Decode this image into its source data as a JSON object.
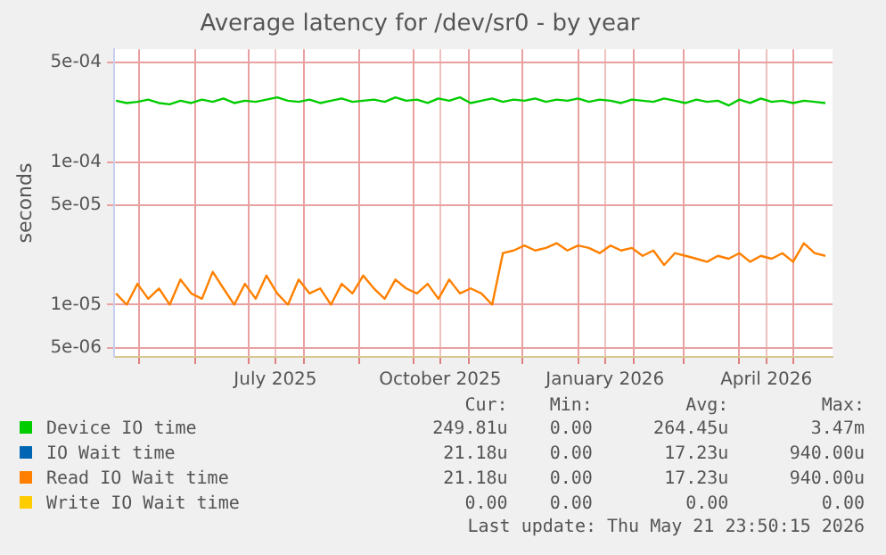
{
  "chart_data": {
    "type": "line",
    "title": "Average latency for /dev/sr0 - by year",
    "ylabel": "seconds",
    "x": [
      "2025-04-18",
      "2025-04-24",
      "2025-04-30",
      "2025-05-06",
      "2025-05-12",
      "2025-05-18",
      "2025-05-24",
      "2025-05-30",
      "2025-06-05",
      "2025-06-11",
      "2025-06-17",
      "2025-06-23",
      "2025-06-29",
      "2025-07-05",
      "2025-07-11",
      "2025-07-17",
      "2025-07-23",
      "2025-07-29",
      "2025-08-04",
      "2025-08-10",
      "2025-08-16",
      "2025-08-22",
      "2025-08-28",
      "2025-09-03",
      "2025-09-09",
      "2025-09-15",
      "2025-09-21",
      "2025-09-27",
      "2025-10-03",
      "2025-10-09",
      "2025-10-15",
      "2025-10-21",
      "2025-10-27",
      "2025-11-02",
      "2025-11-08",
      "2025-11-14",
      "2025-11-20",
      "2025-11-26",
      "2025-12-02",
      "2025-12-08",
      "2025-12-14",
      "2025-12-20",
      "2025-12-26",
      "2026-01-01",
      "2026-01-07",
      "2026-01-13",
      "2026-01-19",
      "2026-01-25",
      "2026-01-31",
      "2026-02-06",
      "2026-02-12",
      "2026-02-18",
      "2026-02-24",
      "2026-03-02",
      "2026-03-08",
      "2026-03-14",
      "2026-03-20",
      "2026-03-26",
      "2026-04-01",
      "2026-04-07",
      "2026-04-13",
      "2026-04-19",
      "2026-04-25",
      "2026-05-01",
      "2026-05-07",
      "2026-05-13",
      "2026-05-19"
    ],
    "series": [
      {
        "name": "Device IO time",
        "color": "#00cc00",
        "values": [
          0.00027,
          0.00026,
          0.000265,
          0.000275,
          0.00026,
          0.000255,
          0.00027,
          0.00026,
          0.000275,
          0.000265,
          0.00028,
          0.00026,
          0.00027,
          0.000265,
          0.000275,
          0.000285,
          0.00027,
          0.000265,
          0.000275,
          0.00026,
          0.00027,
          0.00028,
          0.000265,
          0.00027,
          0.000275,
          0.000265,
          0.000285,
          0.00027,
          0.000275,
          0.00026,
          0.00028,
          0.00027,
          0.000285,
          0.00026,
          0.00027,
          0.00028,
          0.000265,
          0.000275,
          0.00027,
          0.00028,
          0.000265,
          0.000275,
          0.00027,
          0.00028,
          0.000265,
          0.000275,
          0.00027,
          0.00026,
          0.000275,
          0.00027,
          0.000265,
          0.00028,
          0.00027,
          0.00026,
          0.000275,
          0.000265,
          0.00027,
          0.00025,
          0.000275,
          0.00026,
          0.00028,
          0.000265,
          0.00027,
          0.00026,
          0.00027,
          0.000265,
          0.00026
        ]
      },
      {
        "name": "IO Wait time",
        "color": "#0066b3",
        "values": [
          null,
          null,
          null,
          null,
          null,
          null,
          null,
          null,
          null,
          null,
          null,
          null,
          null,
          null,
          null,
          null,
          null,
          null,
          null,
          null,
          null,
          null,
          null,
          null,
          null,
          null,
          null,
          null,
          null,
          null,
          null,
          null,
          null,
          null,
          null,
          null,
          null,
          null,
          null,
          null,
          null,
          null,
          null,
          null,
          null,
          null,
          null,
          null,
          null,
          null,
          null,
          null,
          null,
          null,
          null,
          null,
          null,
          null,
          null,
          null,
          null,
          null,
          null,
          null,
          null,
          null,
          null
        ]
      },
      {
        "name": "Read IO Wait time",
        "color": "#ff8000",
        "values": [
          1.2e-05,
          1e-05,
          1.4e-05,
          1.1e-05,
          1.3e-05,
          1e-05,
          1.5e-05,
          1.2e-05,
          1.1e-05,
          1.7e-05,
          1.3e-05,
          1e-05,
          1.4e-05,
          1.1e-05,
          1.6e-05,
          1.2e-05,
          1e-05,
          1.5e-05,
          1.2e-05,
          1.3e-05,
          1e-05,
          1.4e-05,
          1.2e-05,
          1.6e-05,
          1.3e-05,
          1.1e-05,
          1.5e-05,
          1.3e-05,
          1.2e-05,
          1.4e-05,
          1.1e-05,
          1.5e-05,
          1.2e-05,
          1.3e-05,
          1.2e-05,
          1e-05,
          2.3e-05,
          2.4e-05,
          2.6e-05,
          2.4e-05,
          2.5e-05,
          2.7e-05,
          2.4e-05,
          2.6e-05,
          2.5e-05,
          2.3e-05,
          2.6e-05,
          2.4e-05,
          2.5e-05,
          2.2e-05,
          2.4e-05,
          1.9e-05,
          2.3e-05,
          2.2e-05,
          2.1e-05,
          2e-05,
          2.2e-05,
          2.1e-05,
          2.3e-05,
          2e-05,
          2.2e-05,
          2.1e-05,
          2.3e-05,
          2e-05,
          2.7e-05,
          2.3e-05,
          2.2e-05
        ]
      },
      {
        "name": "Write IO Wait time",
        "color": "#ffcc00",
        "values": [
          null,
          null,
          null,
          null,
          null,
          null,
          null,
          null,
          null,
          null,
          null,
          null,
          null,
          null,
          null,
          null,
          null,
          null,
          null,
          null,
          null,
          null,
          null,
          null,
          null,
          null,
          null,
          null,
          null,
          null,
          null,
          null,
          null,
          null,
          null,
          null,
          null,
          null,
          null,
          null,
          null,
          null,
          null,
          null,
          null,
          null,
          null,
          null,
          null,
          null,
          null,
          null,
          null,
          null,
          null,
          null,
          null,
          null,
          null,
          null,
          null,
          null,
          null,
          null,
          null,
          null,
          null
        ]
      }
    ],
    "log": "y",
    "xlim": [
      "2025-04-17",
      "2026-05-23"
    ],
    "ylim": [
      4.3e-06,
      0.00062
    ],
    "xticks": [
      {
        "value": "2025-05-01",
        "label": null
      },
      {
        "value": "2025-06-01",
        "label": null
      },
      {
        "value": "2025-07-01",
        "label": null
      },
      {
        "value": "2025-07-16",
        "label": "July 2025"
      },
      {
        "value": "2025-08-01",
        "label": null
      },
      {
        "value": "2025-09-01",
        "label": null
      },
      {
        "value": "2025-10-01",
        "label": null
      },
      {
        "value": "2025-10-16",
        "label": "October 2025"
      },
      {
        "value": "2025-11-01",
        "label": null
      },
      {
        "value": "2025-12-01",
        "label": null
      },
      {
        "value": "2026-01-01",
        "label": null
      },
      {
        "value": "2026-01-16",
        "label": "January 2026"
      },
      {
        "value": "2026-02-01",
        "label": null
      },
      {
        "value": "2026-03-01",
        "label": null
      },
      {
        "value": "2026-04-01",
        "label": null
      },
      {
        "value": "2026-04-16",
        "label": "April 2026"
      },
      {
        "value": "2026-05-01",
        "label": null
      }
    ],
    "yticks": [
      {
        "value": 5e-06,
        "label": "5e-06"
      },
      {
        "value": 1e-05,
        "label": "1e-05"
      },
      {
        "value": 5e-05,
        "label": "5e-05"
      },
      {
        "value": 0.0001,
        "label": "1e-04"
      },
      {
        "value": 0.0005,
        "label": "5e-04"
      }
    ],
    "grid": true,
    "legend": "bottom",
    "marker": "none",
    "line_style": "solid",
    "annotations": [
      "Cur:",
      "Min:",
      "Avg:",
      "Max:",
      "249.81u",
      "0.00",
      "264.45u",
      "3.47m",
      "21.18u",
      "0.00",
      "17.23u",
      "940.00u",
      "21.18u",
      "0.00",
      "17.23u",
      "940.00u",
      "0.00",
      "0.00",
      "0.00",
      "0.00",
      "Last update: Thu May 21 23:50:15 2026"
    ]
  }
}
